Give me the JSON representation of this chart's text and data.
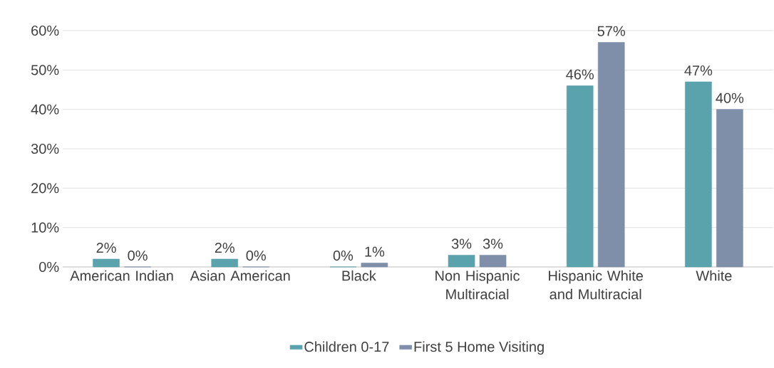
{
  "chart_data": {
    "type": "bar",
    "categories": [
      "American Indian",
      "Asian American",
      "Black",
      "Non Hispanic Multiracial",
      "Hispanic White and Multiracial",
      "White"
    ],
    "series": [
      {
        "name": "Children 0-17",
        "color": "#5ba3ac",
        "values": [
          2,
          2,
          0,
          3,
          46,
          47
        ],
        "value_labels": [
          "2%",
          "2%",
          "0%",
          "3%",
          "46%",
          "47%"
        ]
      },
      {
        "name": "First 5 Home Visiting",
        "color": "#7f8faa",
        "values": [
          0,
          0,
          1,
          3,
          57,
          40
        ],
        "value_labels": [
          "0%",
          "0%",
          "1%",
          "3%",
          "57%",
          "40%"
        ]
      }
    ],
    "ylim": [
      0,
      60
    ],
    "yticks": [
      {
        "value": 0,
        "label": "0%"
      },
      {
        "value": 10,
        "label": "10%"
      },
      {
        "value": 20,
        "label": "20%"
      },
      {
        "value": 30,
        "label": "30%"
      },
      {
        "value": 40,
        "label": "40%"
      },
      {
        "value": 50,
        "label": "50%"
      },
      {
        "value": 60,
        "label": "60%"
      }
    ],
    "grid": "y",
    "legend": "bottom"
  }
}
